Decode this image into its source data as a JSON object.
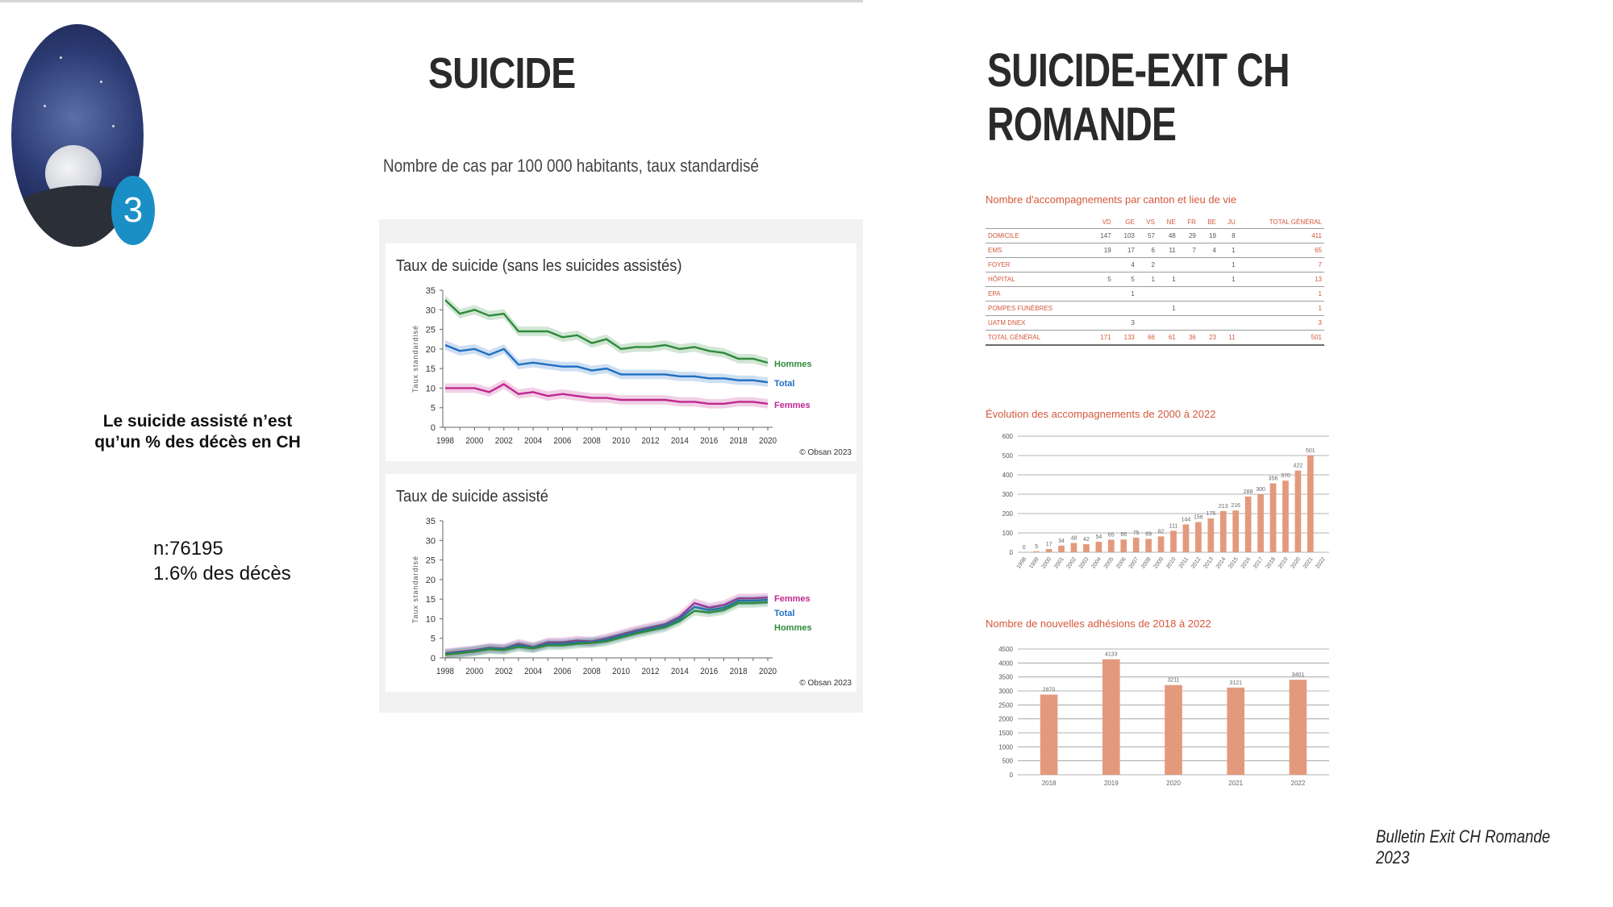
{
  "left": {
    "badge_number": "3",
    "note_line1": "Le suicide assisté n’est",
    "note_line2": "qu’un % des décès en CH",
    "stats_line1": "n:76195",
    "stats_line2": "1.6% des décès"
  },
  "header": {
    "title_left": "SUICIDE",
    "title_right": "SUICIDE-EXIT CH ROMANDE",
    "subtitle": "Nombre de cas par 100 000 habitants, taux standardisé"
  },
  "footer": {
    "source": "Bulletin Exit CH Romande 2023"
  },
  "colors": {
    "hommes": "#2e8b3a",
    "total": "#1f6fc2",
    "femmes": "#c0288f",
    "exit_bar": "#e39a7c",
    "exit_text": "#d4583a"
  },
  "table": {
    "title": "Nombre d'accompagnements par canton et lieu de vie",
    "headers": [
      "",
      "VD",
      "GE",
      "VS",
      "NE",
      "FR",
      "BE",
      "JU",
      "TOTAL GÉNÉRAL"
    ],
    "rows": [
      [
        "DOMICILE",
        "147",
        "103",
        "57",
        "48",
        "29",
        "19",
        "8",
        "411"
      ],
      [
        "EMS",
        "19",
        "17",
        "6",
        "11",
        "7",
        "4",
        "1",
        "65"
      ],
      [
        "FOYER",
        "",
        "4",
        "2",
        "",
        "",
        "",
        "1",
        "7"
      ],
      [
        "HÔPITAL",
        "5",
        "5",
        "1",
        "1",
        "",
        "",
        "1",
        "13"
      ],
      [
        "EPA",
        "",
        "1",
        "",
        "",
        "",
        "",
        "",
        "1"
      ],
      [
        "POMPES FUNÈBRES",
        "",
        "",
        "",
        "1",
        "",
        "",
        "",
        "1"
      ],
      [
        "UATM DNEX",
        "",
        "3",
        "",
        "",
        "",
        "",
        "",
        "3"
      ]
    ],
    "total_row": [
      "TOTAL GÉNÉRAL",
      "171",
      "133",
      "66",
      "61",
      "36",
      "23",
      "11",
      "501"
    ]
  },
  "chart_data": [
    {
      "type": "line",
      "title": "Taux de suicide (sans les suicides assistés)",
      "ylabel": "Taux standardisé",
      "ylim": [
        0,
        35
      ],
      "yticks": [
        "0",
        "5",
        "10",
        "15",
        "20",
        "25",
        "30",
        "35"
      ],
      "xticks": [
        "1998",
        "2000",
        "2002",
        "2004",
        "2006",
        "2008",
        "2010",
        "2012",
        "2014",
        "2016",
        "2018",
        "2020"
      ],
      "x": [
        1998,
        1999,
        2000,
        2001,
        2002,
        2003,
        2004,
        2005,
        2006,
        2007,
        2008,
        2009,
        2010,
        2011,
        2012,
        2013,
        2014,
        2015,
        2016,
        2017,
        2018,
        2019,
        2020
      ],
      "series": [
        {
          "name": "Hommes",
          "values": [
            32.5,
            29,
            30,
            28.5,
            29,
            24.5,
            24.5,
            24.5,
            23,
            23.5,
            21.5,
            22.5,
            20,
            20.5,
            20.5,
            21,
            20,
            20.5,
            19.5,
            19,
            17.5,
            17.5,
            16.5
          ]
        },
        {
          "name": "Total",
          "values": [
            21,
            19.5,
            20,
            18.5,
            20,
            16,
            16.5,
            16,
            15.5,
            15.5,
            14.5,
            15,
            13.5,
            13.5,
            13.5,
            13.5,
            13,
            13,
            12.5,
            12.5,
            12,
            12,
            11.5
          ]
        },
        {
          "name": "Femmes",
          "values": [
            10,
            10,
            10,
            9,
            11,
            8.5,
            9,
            8,
            8.5,
            8,
            7.5,
            7.5,
            7,
            7,
            7,
            7,
            6.5,
            6.5,
            6,
            6,
            6.5,
            6.5,
            6
          ]
        }
      ],
      "source": "© Obsan 2023"
    },
    {
      "type": "line",
      "title": "Taux de suicide assisté",
      "ylabel": "Taux standardisé",
      "ylim": [
        0,
        35
      ],
      "yticks": [
        "0",
        "5",
        "10",
        "15",
        "20",
        "25",
        "30",
        "35"
      ],
      "xticks": [
        "1998",
        "2000",
        "2002",
        "2004",
        "2006",
        "2008",
        "2010",
        "2012",
        "2014",
        "2016",
        "2018",
        "2020"
      ],
      "x": [
        1998,
        1999,
        2000,
        2001,
        2002,
        2003,
        2004,
        2005,
        2006,
        2007,
        2008,
        2009,
        2010,
        2011,
        2012,
        2013,
        2014,
        2015,
        2016,
        2017,
        2018,
        2019,
        2020
      ],
      "series": [
        {
          "name": "Femmes",
          "values": [
            1.2,
            1.6,
            2.0,
            2.6,
            2.4,
            3.6,
            2.8,
            4.0,
            4.0,
            4.4,
            4.2,
            5.0,
            6.0,
            7.0,
            7.8,
            8.6,
            10.5,
            14.0,
            12.8,
            13.5,
            15.2,
            15.2,
            15.4
          ]
        },
        {
          "name": "Total",
          "values": [
            1.0,
            1.4,
            1.8,
            2.4,
            2.2,
            3.2,
            2.6,
            3.6,
            3.6,
            4.0,
            4.0,
            4.6,
            5.6,
            6.6,
            7.4,
            8.2,
            10.0,
            13.0,
            12.2,
            12.8,
            14.6,
            14.6,
            14.8
          ]
        },
        {
          "name": "Hommes",
          "values": [
            0.8,
            1.2,
            1.6,
            2.2,
            2.0,
            2.8,
            2.4,
            3.2,
            3.2,
            3.6,
            3.8,
            4.2,
            5.2,
            6.2,
            7.0,
            7.8,
            9.4,
            12.0,
            11.6,
            12.2,
            14.0,
            14.0,
            14.2
          ]
        }
      ],
      "source": "© Obsan 2023"
    },
    {
      "type": "bar",
      "title": "Évolution des accompagnements de 2000 à 2022",
      "ylim": [
        0,
        600
      ],
      "yticks": [
        "0",
        "100",
        "200",
        "300",
        "400",
        "500",
        "600"
      ],
      "categories": [
        "1998",
        "1999",
        "2000",
        "2001",
        "2002",
        "2003",
        "2004",
        "2005",
        "2006",
        "2007",
        "2008",
        "2009",
        "2010",
        "2011",
        "2012",
        "2013",
        "2014",
        "2015",
        "2016",
        "2017",
        "2018",
        "2019",
        "2020",
        "2021",
        "2022"
      ],
      "values": [
        0,
        5,
        17,
        34,
        48,
        42,
        54,
        65,
        66,
        75,
        69,
        82,
        111,
        144,
        156,
        175,
        213,
        216,
        288,
        300,
        356,
        370,
        422,
        501,
        null
      ],
      "labels": [
        "0",
        "5",
        "17",
        "34",
        "48",
        "42",
        "54",
        "65",
        "66",
        "75",
        "69",
        "82",
        "111",
        "144",
        "156",
        "175",
        "213",
        "216",
        "288",
        "300",
        "356",
        "370",
        "422",
        "501",
        ""
      ]
    },
    {
      "type": "bar",
      "title": "Nombre de nouvelles adhésions de 2018 à 2022",
      "ylim": [
        0,
        4500
      ],
      "yticks": [
        "0",
        "500",
        "1000",
        "1500",
        "2000",
        "2500",
        "3000",
        "3500",
        "4000",
        "4500"
      ],
      "categories": [
        "2018",
        "2019",
        "2020",
        "2021",
        "2022"
      ],
      "values": [
        2870,
        4133,
        3211,
        3121,
        3401
      ],
      "labels": [
        "2870",
        "4133",
        "3211",
        "3121",
        "3401"
      ]
    }
  ]
}
